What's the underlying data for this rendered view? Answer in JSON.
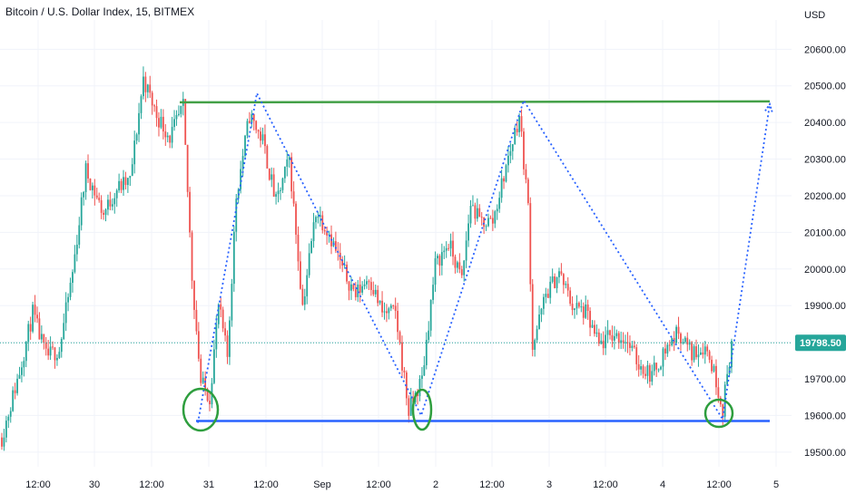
{
  "chart_title": "Bitcoin / U.S. Dollar Index, 15, BITMEX",
  "colors": {
    "up": "#26a69a",
    "down": "#ef5350",
    "resistance": "#43a047",
    "support": "#2962ff",
    "pattern": "#2962ff",
    "circle": "#2e9e3e",
    "price_badge": "#26a69a",
    "grid": "#f0f3fa"
  },
  "chart_data": {
    "type": "candlestick",
    "y_unit": "USD",
    "ylim": [
      19460,
      20680
    ],
    "y_ticks": [
      "20600.00",
      "20500.00",
      "20400.00",
      "20300.00",
      "20200.00",
      "20100.00",
      "20000.00",
      "19900.00",
      "19800.00",
      "19700.00",
      "19600.00",
      "19500.00"
    ],
    "x_ticks": [
      "12:00",
      "30",
      "12:00",
      "31",
      "12:00",
      "Sep",
      "12:00",
      "2",
      "12:00",
      "3",
      "12:00",
      "4",
      "12:00",
      "5"
    ],
    "last_price": "19798.50",
    "grid": true,
    "price_path": [
      {
        "i": 0,
        "v": 19540
      },
      {
        "i": 8,
        "v": 19720
      },
      {
        "i": 14,
        "v": 19880
      },
      {
        "i": 20,
        "v": 19760
      },
      {
        "i": 26,
        "v": 19780
      },
      {
        "i": 32,
        "v": 19990
      },
      {
        "i": 38,
        "v": 20270
      },
      {
        "i": 46,
        "v": 20150
      },
      {
        "i": 52,
        "v": 20220
      },
      {
        "i": 58,
        "v": 20240
      },
      {
        "i": 64,
        "v": 20520
      },
      {
        "i": 70,
        "v": 20420
      },
      {
        "i": 76,
        "v": 20360
      },
      {
        "i": 82,
        "v": 20440
      },
      {
        "i": 86,
        "v": 19980
      },
      {
        "i": 90,
        "v": 19690
      },
      {
        "i": 94,
        "v": 19650
      },
      {
        "i": 98,
        "v": 19900
      },
      {
        "i": 102,
        "v": 19760
      },
      {
        "i": 106,
        "v": 20200
      },
      {
        "i": 112,
        "v": 20420
      },
      {
        "i": 118,
        "v": 20350
      },
      {
        "i": 124,
        "v": 20180
      },
      {
        "i": 130,
        "v": 20300
      },
      {
        "i": 136,
        "v": 19900
      },
      {
        "i": 142,
        "v": 20160
      },
      {
        "i": 148,
        "v": 20100
      },
      {
        "i": 154,
        "v": 20000
      },
      {
        "i": 160,
        "v": 19930
      },
      {
        "i": 166,
        "v": 19980
      },
      {
        "i": 172,
        "v": 19880
      },
      {
        "i": 178,
        "v": 19880
      },
      {
        "i": 184,
        "v": 19610
      },
      {
        "i": 190,
        "v": 19700
      },
      {
        "i": 196,
        "v": 20010
      },
      {
        "i": 202,
        "v": 20070
      },
      {
        "i": 208,
        "v": 19970
      },
      {
        "i": 212,
        "v": 20180
      },
      {
        "i": 216,
        "v": 20130
      },
      {
        "i": 222,
        "v": 20130
      },
      {
        "i": 228,
        "v": 20280
      },
      {
        "i": 234,
        "v": 20420
      },
      {
        "i": 238,
        "v": 20170
      },
      {
        "i": 240,
        "v": 19790
      },
      {
        "i": 246,
        "v": 19930
      },
      {
        "i": 252,
        "v": 19990
      },
      {
        "i": 258,
        "v": 19900
      },
      {
        "i": 264,
        "v": 19880
      },
      {
        "i": 270,
        "v": 19790
      },
      {
        "i": 276,
        "v": 19820
      },
      {
        "i": 282,
        "v": 19810
      },
      {
        "i": 288,
        "v": 19740
      },
      {
        "i": 294,
        "v": 19710
      },
      {
        "i": 300,
        "v": 19780
      },
      {
        "i": 306,
        "v": 19830
      },
      {
        "i": 312,
        "v": 19770
      },
      {
        "i": 318,
        "v": 19790
      },
      {
        "i": 322,
        "v": 19720
      },
      {
        "i": 326,
        "v": 19620
      },
      {
        "i": 330,
        "v": 19800
      }
    ],
    "annotations": {
      "resistance_line": {
        "y": 20455
      },
      "support_line": {
        "y": 19585
      },
      "pattern_path_y": [
        19580,
        20480,
        19600,
        20460,
        19590,
        20450
      ]
    }
  }
}
